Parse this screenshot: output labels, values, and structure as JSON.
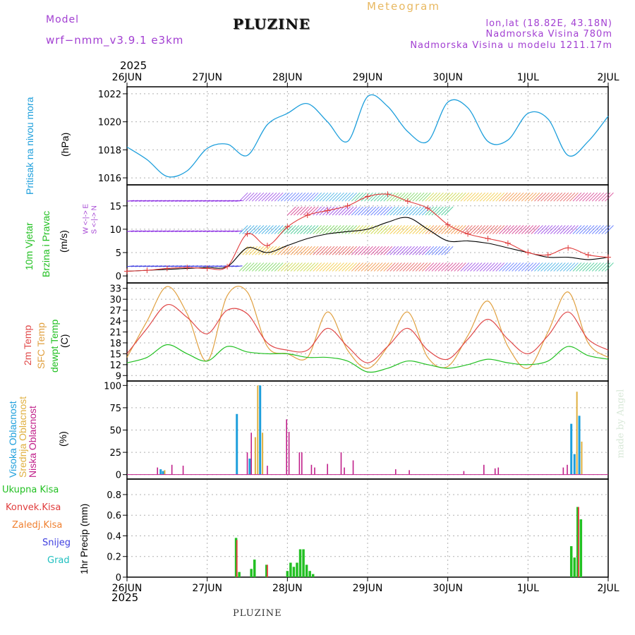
{
  "header": {
    "model_label": "Model",
    "model_name": "wrf−nmm_v3.9.1  e3km",
    "title": "PLUZINE",
    "subtitle": "Meteogram",
    "coords": "lon,lat (18.82E, 43.18N)",
    "elevation": "Nadmorska Visina 780m",
    "model_elevation": "Nadmorska Visina u modelu 1211.17m",
    "watermark": "made by Angel",
    "footer": "PLUZINE",
    "year_top": "2025",
    "year_bottom": "2025"
  },
  "colors": {
    "pressure": "#1e9fdc",
    "wind_mean": "#000000",
    "wind_gust": "#e03c3c",
    "temp2m": "#e04848",
    "sfc": "#e0a040",
    "dew": "#22c022",
    "cloud_high": "#1e9fdc",
    "cloud_mid": "#e0b040",
    "cloud_low": "#c0208a",
    "rain_total": "#22c022",
    "rain_conv": "#e03c3c",
    "rain_frozen": "#f08030",
    "snow": "#4040e0",
    "hail": "#20c0c0",
    "grid": "#b0b0b0"
  },
  "chart_data": [
    {
      "type": "line",
      "panel": "pressure",
      "title": "Pritisak na nivou mora",
      "ylabel": "(hPa)",
      "ylim": [
        1015.5,
        1022.5
      ],
      "yticks": [
        1016,
        1018,
        1020,
        1022
      ],
      "x_categories": [
        "26JUN",
        "27JUN",
        "28JUN",
        "29JUN",
        "30JUN",
        "1JUL",
        "2JUL"
      ],
      "x_days": [
        0,
        0.25,
        0.5,
        0.75,
        1.0,
        1.25,
        1.5,
        1.75,
        2.0,
        2.25,
        2.5,
        2.75,
        3.0,
        3.25,
        3.5,
        3.75,
        4.0,
        4.25,
        4.5,
        4.75,
        5.0,
        5.25,
        5.5,
        5.75,
        6.0
      ],
      "series": [
        {
          "name": "Pritisak na nivou mora",
          "values": [
            1018.2,
            1017.3,
            1016.1,
            1016.5,
            1018.1,
            1018.4,
            1017.6,
            1019.8,
            1020.6,
            1021.3,
            1020.0,
            1018.6,
            1021.8,
            1021.1,
            1019.3,
            1018.6,
            1021.4,
            1021.0,
            1018.6,
            1018.7,
            1020.6,
            1020.2,
            1017.6,
            1018.6,
            1020.4
          ]
        }
      ]
    },
    {
      "type": "line",
      "panel": "wind",
      "title": "10m Vjetar",
      "subtitle": "Brzina i Pravac",
      "ylabel": "(m/s)",
      "ylim": [
        -1.5,
        19.5
      ],
      "yticks": [
        0,
        5,
        10,
        15
      ],
      "compass": "W <-|-> E, S <-|-> N",
      "x_days": [
        0,
        0.25,
        0.5,
        0.75,
        1.0,
        1.25,
        1.5,
        1.75,
        2.0,
        2.25,
        2.5,
        2.75,
        3.0,
        3.25,
        3.5,
        3.75,
        4.0,
        4.25,
        4.5,
        4.75,
        5.0,
        5.25,
        5.5,
        5.75,
        6.0
      ],
      "series": [
        {
          "name": "mean wind",
          "values": [
            1.0,
            1.2,
            1.4,
            1.6,
            1.8,
            2.0,
            6.0,
            5.0,
            6.5,
            8.0,
            9.0,
            9.5,
            10.0,
            11.5,
            12.5,
            10.0,
            7.5,
            7.5,
            7.0,
            6.0,
            5.0,
            4.0,
            4.0,
            3.5,
            4.0
          ]
        },
        {
          "name": "gust",
          "values": [
            1.0,
            1.2,
            1.6,
            1.8,
            1.6,
            2.0,
            9.0,
            6.5,
            10.5,
            13.0,
            14.0,
            15.0,
            17.0,
            17.5,
            16.0,
            14.5,
            11.0,
            9.0,
            8.0,
            7.0,
            5.0,
            4.5,
            6.0,
            4.5,
            4.0
          ]
        }
      ]
    },
    {
      "type": "line",
      "panel": "temperature",
      "title": "2m Temp",
      "ylabel": "(C)",
      "ylim": [
        7.5,
        34.5
      ],
      "yticks": [
        9,
        12,
        15,
        18,
        21,
        24,
        27,
        30,
        33
      ],
      "x_days": [
        0,
        0.25,
        0.5,
        0.75,
        1.0,
        1.25,
        1.5,
        1.75,
        2.0,
        2.25,
        2.5,
        2.75,
        3.0,
        3.25,
        3.5,
        3.75,
        4.0,
        4.25,
        4.5,
        4.75,
        5.0,
        5.25,
        5.5,
        5.75,
        6.0
      ],
      "series": [
        {
          "name": "2m Temp",
          "values": [
            15,
            22,
            28.5,
            25,
            20.5,
            27,
            26,
            18,
            16,
            16,
            22,
            17,
            12.5,
            17,
            22,
            16,
            13.5,
            19,
            24.5,
            19,
            15,
            20,
            26.5,
            19,
            16
          ]
        },
        {
          "name": "SFC Temp",
          "values": [
            14,
            24,
            33.5,
            26,
            13,
            31,
            32,
            17,
            15,
            14,
            26.5,
            16,
            11,
            17,
            26.5,
            14,
            11.5,
            20,
            29.5,
            17,
            11,
            21,
            32,
            18,
            14
          ]
        },
        {
          "name": "dewpt Temp",
          "values": [
            12.5,
            14,
            17.5,
            15,
            13,
            17,
            15.5,
            15,
            15,
            14,
            14,
            13,
            10,
            11,
            13,
            12,
            11,
            12,
            13.5,
            12.5,
            12,
            13,
            17,
            14.5,
            13.5
          ]
        }
      ]
    },
    {
      "type": "bar",
      "panel": "cloud",
      "title": "Visoka Oblacnost",
      "ylabel": "(%)",
      "ylim": [
        -5,
        105
      ],
      "yticks": [
        0,
        25,
        50,
        75,
        100
      ],
      "series": [
        {
          "name": "Visoka Oblacnost",
          "x": [
            0.42,
            0.45,
            1.37,
            1.53,
            1.66,
            5.54,
            5.58,
            5.64
          ],
          "values": [
            6,
            4,
            68,
            18,
            100,
            57,
            23,
            66
          ]
        },
        {
          "name": "Srednja Oblacnost",
          "x": [
            0.47,
            1.6,
            1.63,
            1.69,
            5.61,
            5.67
          ],
          "values": [
            5,
            42,
            100,
            47,
            93,
            37
          ]
        },
        {
          "name": "Niska Oblacnost",
          "x": [
            0.38,
            0.56,
            0.7,
            1.5,
            1.55,
            1.75,
            1.99,
            2.02,
            2.15,
            2.18,
            2.3,
            2.34,
            2.5,
            2.67,
            2.71,
            2.82,
            3.35,
            3.52,
            4.2,
            4.45,
            4.59,
            4.63,
            5.44,
            5.49
          ],
          "values": [
            8,
            11,
            10,
            25,
            47,
            10,
            62,
            48,
            25,
            25,
            11,
            8,
            12,
            25,
            8,
            16,
            6,
            5,
            4,
            11,
            7,
            8,
            8,
            11
          ]
        }
      ]
    },
    {
      "type": "bar",
      "panel": "precip",
      "title": "1hr Precip (mm)",
      "ylim": [
        0,
        0.95
      ],
      "yticks": [
        0,
        0.2,
        0.4,
        0.6,
        0.8
      ],
      "legend": [
        "Ukupna Kisa",
        "Konvek.Kisa",
        "Zaledj.Kisa",
        "Snijeg",
        "Grad"
      ],
      "series": [
        {
          "name": "Ukupna Kisa",
          "x": [
            1.36,
            1.4,
            1.55,
            1.59,
            1.74,
            2.0,
            2.04,
            2.08,
            2.12,
            2.16,
            2.2,
            2.24,
            2.28,
            2.32,
            5.54,
            5.58,
            5.62,
            5.66
          ],
          "values": [
            0.38,
            0.05,
            0.08,
            0.17,
            0.12,
            0.06,
            0.14,
            0.1,
            0.14,
            0.27,
            0.27,
            0.12,
            0.06,
            0.03,
            0.3,
            0.19,
            0.68,
            0.56
          ]
        },
        {
          "name": "Konvek.Kisa",
          "x": [
            1.37,
            1.75,
            5.63
          ],
          "values": [
            0.36,
            0.12,
            0.68
          ]
        },
        {
          "name": "Zaledj.Kisa",
          "x": [],
          "values": []
        },
        {
          "name": "Snijeg",
          "x": [],
          "values": []
        },
        {
          "name": "Grad",
          "x": [],
          "values": []
        }
      ]
    }
  ],
  "axis": {
    "x_tick_labels": [
      "26JUN",
      "27JUN",
      "28JUN",
      "29JUN",
      "30JUN",
      "1JUL",
      "2JUL"
    ],
    "labels": {
      "pressure": "Pritisak na nivou mora",
      "pressure_unit": "(hPa)",
      "wind1": "10m Vjetar",
      "wind2": "Brzina i Pravac",
      "wind_unit": "(m/s)",
      "compass": "W <-|-> E",
      "compass2": "S <-|-> N",
      "t1": "2m Temp",
      "t2": "SFC Temp",
      "t3": "dewpt Temp",
      "t_unit": "(C)",
      "c1": "Visoka Oblacnost",
      "c2": "Srednja Oblacnost",
      "c3": "Niska Oblacnost",
      "c_unit": "(%)",
      "p_unit": "1hr Precip (mm)"
    }
  }
}
